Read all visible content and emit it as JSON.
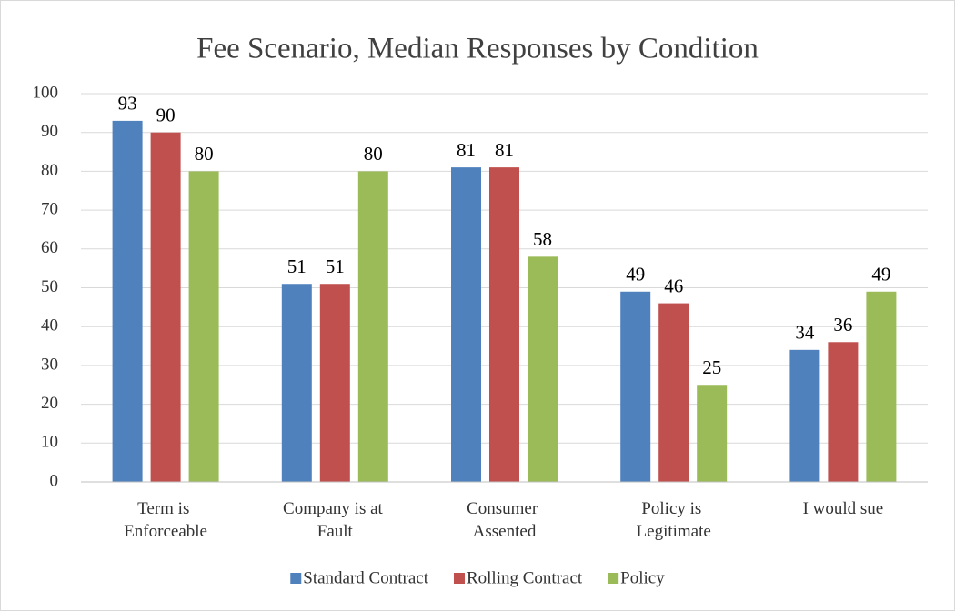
{
  "chart_data": {
    "type": "bar",
    "title": "Fee Scenario, Median Responses by Condition",
    "categories": [
      "Term is Enforceable",
      "Company is at Fault",
      "Consumer Assented",
      "Policy is Legitimate",
      "I would sue"
    ],
    "series": [
      {
        "name": "Standard Contract",
        "color": "#4f81bd",
        "values": [
          93,
          51,
          81,
          49,
          34
        ]
      },
      {
        "name": "Rolling Contract",
        "color": "#c0504d",
        "values": [
          90,
          51,
          81,
          46,
          36
        ]
      },
      {
        "name": "Policy",
        "color": "#9bbb59",
        "values": [
          80,
          80,
          58,
          25,
          49
        ]
      }
    ],
    "ylim": [
      0,
      100
    ],
    "yticks": [
      0,
      10,
      20,
      30,
      40,
      50,
      60,
      70,
      80,
      90,
      100
    ],
    "grid": true,
    "legend": "bottom"
  }
}
